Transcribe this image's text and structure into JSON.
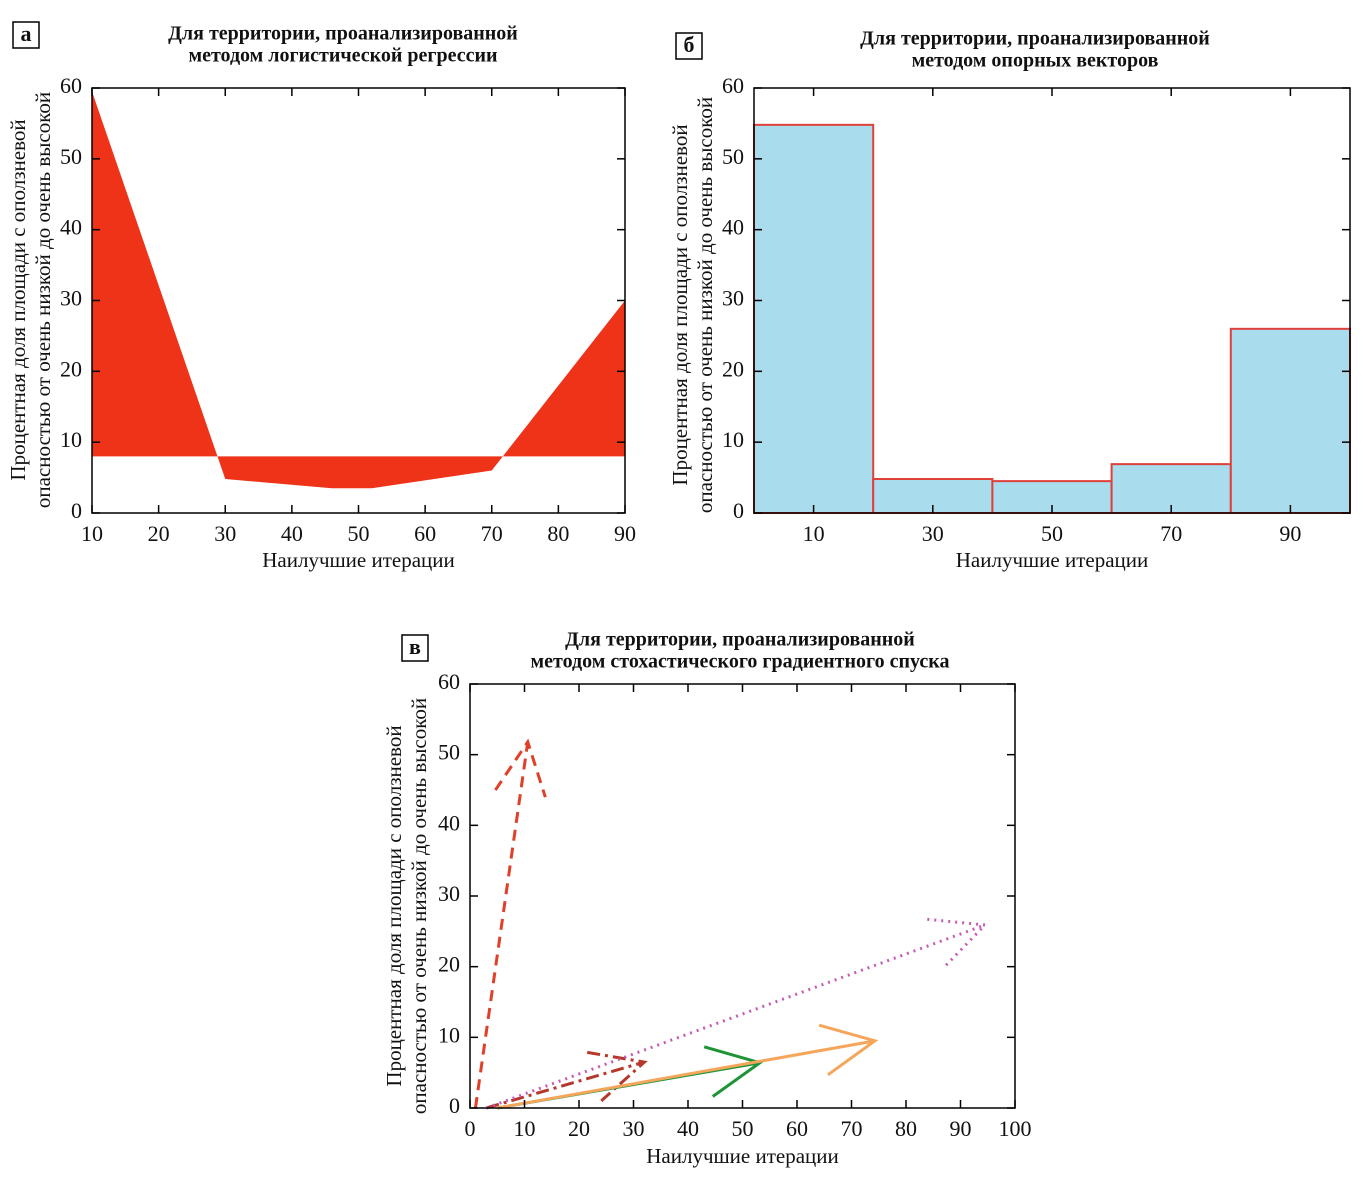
{
  "chart_data": [
    {
      "type": "area",
      "panel": "а",
      "title": [
        "Для территории, проанализированной",
        "методом логистической регрессии"
      ],
      "xlabel": "Наилучшие итерации",
      "ylabel": [
        "Процентная доля площади с оползневой",
        "опасностью от очень низкой до очень высокой"
      ],
      "x": [
        10,
        30,
        46,
        52,
        70,
        90
      ],
      "values": [
        59.5,
        4.8,
        3.5,
        3.5,
        6,
        30
      ],
      "baseline": 8,
      "color": "#ee3319",
      "xlim": [
        10,
        90
      ],
      "xticks": [
        10,
        20,
        30,
        40,
        50,
        60,
        70,
        80,
        90
      ],
      "ylim": [
        0,
        60
      ],
      "yticks": [
        0,
        10,
        20,
        30,
        40,
        50,
        60
      ]
    },
    {
      "type": "histogram",
      "panel": "б",
      "title": [
        "Для территории, проанализированной",
        "методом опорных векторов"
      ],
      "xlabel": "Наилучшие итерации",
      "ylabel": [
        "Процентная доля площади с оползневой",
        "опасностью от очень низкой до очень высокой"
      ],
      "bins": [
        0,
        20,
        40,
        60,
        80,
        100
      ],
      "values": [
        54.8,
        4.8,
        4.5,
        6.9,
        26
      ],
      "color": "#a9dcec",
      "edgecolor": "#e0403a",
      "xlim": [
        0,
        100
      ],
      "xticks": [
        10,
        30,
        50,
        70,
        90
      ],
      "ylim": [
        0,
        60
      ],
      "yticks": [
        0,
        10,
        20,
        30,
        40,
        50,
        60
      ]
    },
    {
      "type": "line",
      "panel": "в",
      "title": [
        "Для территории, проанализированной",
        "методом стохастического градиентного спуска"
      ],
      "xlabel": "Наилучшие итерации",
      "ylabel": [
        "Процентная доля площади с оползневой",
        "опасностью от очень низкой до очень высокой"
      ],
      "arrows": true,
      "series": [
        {
          "color": "#e0402a",
          "linestyle": "dashed",
          "x": [
            1,
            10.6
          ],
          "values": [
            0,
            51.8
          ]
        },
        {
          "color": "#b5382a",
          "linestyle": "dashdot",
          "x": [
            3,
            32
          ],
          "values": [
            0,
            6.5
          ]
        },
        {
          "color": "#c65bb5",
          "linestyle": "dotted",
          "x": [
            3,
            94.5
          ],
          "values": [
            0,
            25.9
          ]
        },
        {
          "color": "#1e9437",
          "linestyle": "solid",
          "x": [
            5,
            53.2
          ],
          "values": [
            0,
            6.4
          ]
        },
        {
          "color": "#f5a65b",
          "linestyle": "solid",
          "x": [
            5,
            74.3
          ],
          "values": [
            0,
            9.5
          ]
        }
      ],
      "xlim": [
        0,
        100
      ],
      "xticks": [
        0,
        10,
        20,
        30,
        40,
        50,
        60,
        70,
        80,
        90,
        100
      ],
      "ylim": [
        0,
        60
      ],
      "yticks": [
        0,
        10,
        20,
        30,
        40,
        50,
        60
      ]
    }
  ]
}
